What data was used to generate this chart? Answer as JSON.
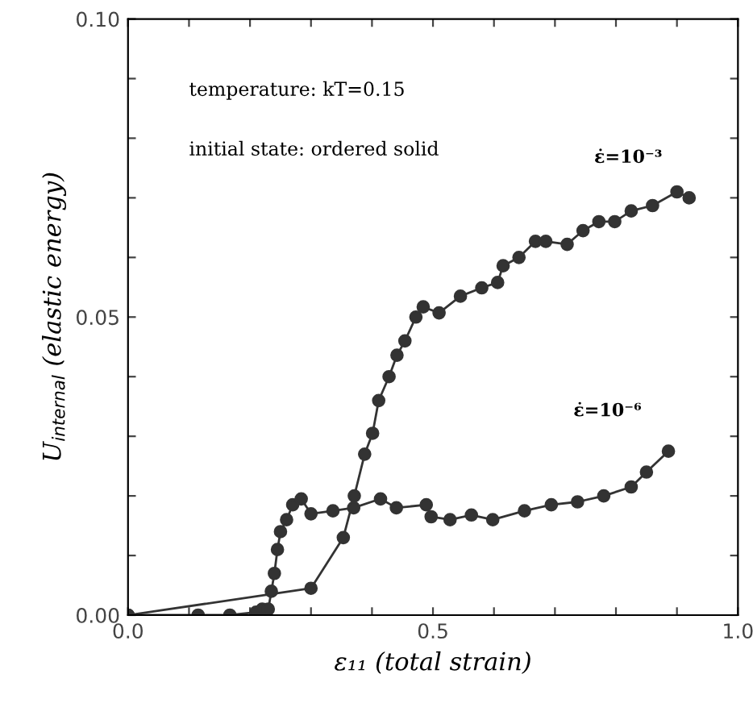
{
  "chart_data": {
    "type": "line",
    "xlabel": "ε₁₁ (total strain)",
    "ylabel": "U$_{internal}$ (elastic energy)",
    "annotations": [
      "temperature: kT=0.15",
      "initial state: ordered solid"
    ],
    "xlim": [
      0.0,
      1.0
    ],
    "ylim": [
      0.0,
      0.1
    ],
    "xticks": [
      {
        "value": 0.0,
        "label": "0.0"
      },
      {
        "value": 0.1,
        "label": null
      },
      {
        "value": 0.2,
        "label": null
      },
      {
        "value": 0.3,
        "label": null
      },
      {
        "value": 0.4,
        "label": null
      },
      {
        "value": 0.5,
        "label": "0.5"
      },
      {
        "value": 0.6,
        "label": null
      },
      {
        "value": 0.7,
        "label": null
      },
      {
        "value": 0.8,
        "label": null
      },
      {
        "value": 0.9,
        "label": null
      },
      {
        "value": 1.0,
        "label": "1.0"
      }
    ],
    "yticks": [
      {
        "value": 0.0,
        "label": "0.00"
      },
      {
        "value": 0.01,
        "label": null
      },
      {
        "value": 0.02,
        "label": null
      },
      {
        "value": 0.03,
        "label": null
      },
      {
        "value": 0.04,
        "label": null
      },
      {
        "value": 0.05,
        "label": "0.05"
      },
      {
        "value": 0.06,
        "label": null
      },
      {
        "value": 0.07,
        "label": null
      },
      {
        "value": 0.08,
        "label": null
      },
      {
        "value": 0.09,
        "label": null
      },
      {
        "value": 0.1,
        "label": "0.10"
      }
    ],
    "grid": false,
    "marker": "circle",
    "line_style": "solid",
    "series": [
      {
        "name": "ε̇=10⁻³",
        "color": "#333333",
        "x": [
          0.0,
          0.3,
          0.353,
          0.371,
          0.388,
          0.401,
          0.411,
          0.428,
          0.441,
          0.454,
          0.472,
          0.484,
          0.51,
          0.545,
          0.58,
          0.606,
          0.615,
          0.641,
          0.668,
          0.685,
          0.72,
          0.746,
          0.772,
          0.798,
          0.825,
          0.86,
          0.9,
          0.92
        ],
        "values": [
          0.0,
          0.0045,
          0.013,
          0.02,
          0.027,
          0.0305,
          0.036,
          0.04,
          0.0436,
          0.046,
          0.05,
          0.0517,
          0.0507,
          0.0535,
          0.0549,
          0.0558,
          0.0586,
          0.06,
          0.0627,
          0.0627,
          0.0622,
          0.0645,
          0.066,
          0.066,
          0.0678,
          0.0687,
          0.071,
          0.07
        ]
      },
      {
        "name": "ε̇=10⁻⁶",
        "color": "#333333",
        "x": [
          0.0,
          0.115,
          0.167,
          0.21,
          0.22,
          0.23,
          0.235,
          0.24,
          0.245,
          0.25,
          0.26,
          0.27,
          0.284,
          0.3,
          0.336,
          0.37,
          0.414,
          0.44,
          0.489,
          0.497,
          0.528,
          0.563,
          0.598,
          0.65,
          0.694,
          0.737,
          0.78,
          0.825,
          0.85,
          0.886
        ],
        "values": [
          0.0,
          0.0,
          0.0,
          0.0005,
          0.001,
          0.001,
          0.004,
          0.007,
          0.011,
          0.014,
          0.016,
          0.0185,
          0.0195,
          0.017,
          0.0175,
          0.018,
          0.0195,
          0.018,
          0.0185,
          0.0165,
          0.016,
          0.0168,
          0.016,
          0.0175,
          0.0185,
          0.019,
          0.02,
          0.0215,
          0.024,
          0.0275
        ]
      }
    ]
  }
}
